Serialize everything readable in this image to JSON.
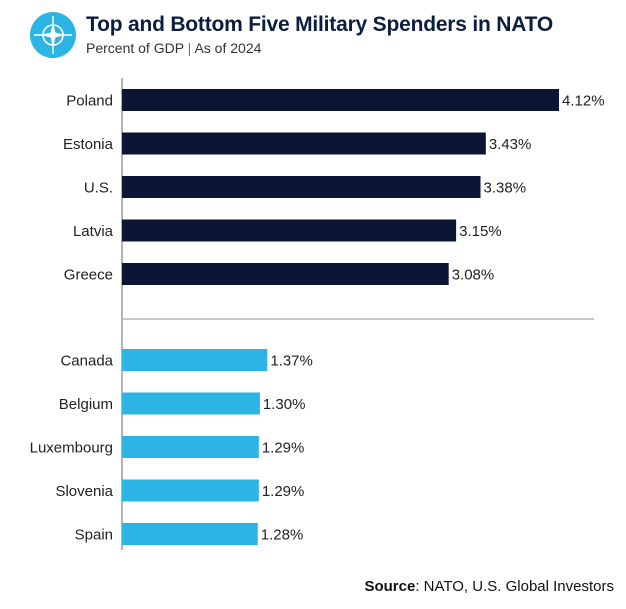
{
  "header": {
    "logo_icon": "nato-compass-star-icon",
    "title": "Top and Bottom Five Military Spenders in NATO",
    "subtitle_metric": "Percent of GDP",
    "subtitle_date": "As of 2024"
  },
  "chart_data": {
    "type": "bar",
    "orientation": "horizontal",
    "title": "Top and Bottom Five Military Spenders in NATO",
    "subtitle": "Percent of GDP | As of 2024",
    "xlabel": "",
    "ylabel": "",
    "xlim": [
      0,
      4.12
    ],
    "value_suffix": "%",
    "grid": false,
    "groups": [
      {
        "color": "#0b1534",
        "categories": [
          "Poland",
          "Estonia",
          "U.S.",
          "Latvia",
          "Greece"
        ],
        "values": [
          4.12,
          3.43,
          3.38,
          3.15,
          3.08
        ],
        "labels": [
          "4.12%",
          "3.43%",
          "3.38%",
          "3.15%",
          "3.08%"
        ]
      },
      {
        "color": "#2bb4e4",
        "categories": [
          "Canada",
          "Belgium",
          "Luxembourg",
          "Slovenia",
          "Spain"
        ],
        "values": [
          1.37,
          1.3,
          1.29,
          1.29,
          1.28
        ],
        "labels": [
          "1.37%",
          "1.30%",
          "1.29%",
          "1.29%",
          "1.28%"
        ]
      }
    ]
  },
  "source": {
    "label": "Source",
    "text": ": NATO, U.S. Global Investors"
  }
}
